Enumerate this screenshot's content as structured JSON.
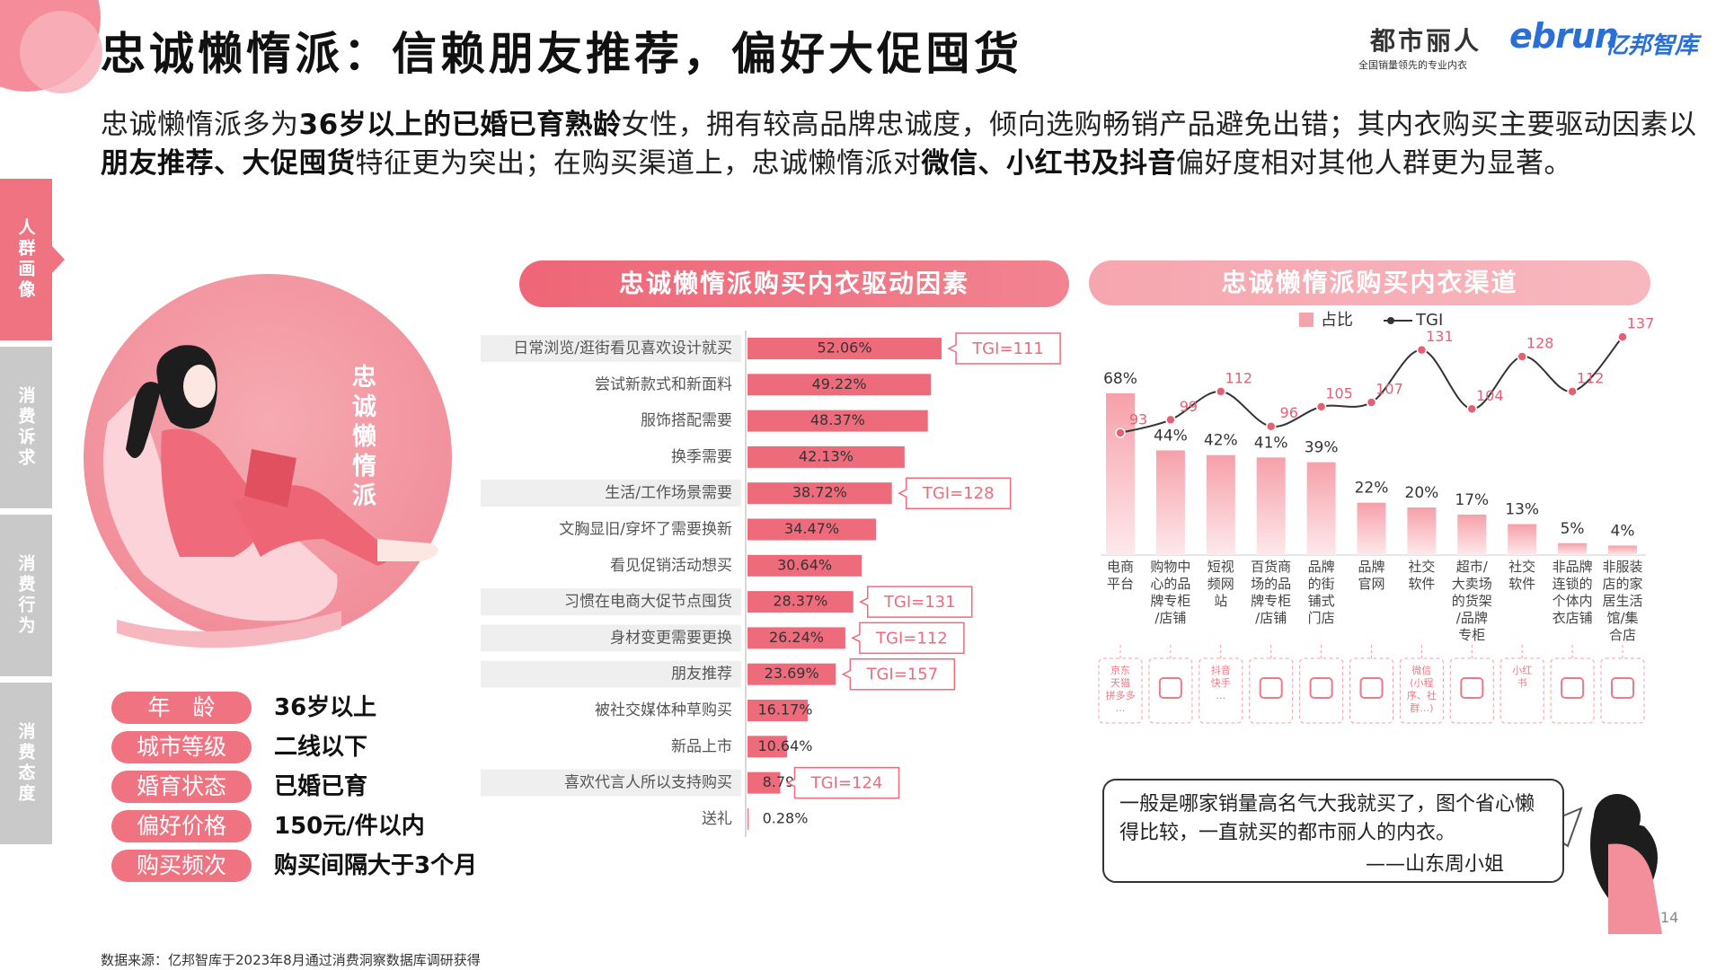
{
  "header": {
    "title": "忠诚懒惰派：信赖朋友推荐，偏好大促囤货",
    "logo_brand": "都市丽人",
    "logo_slogan": "全国销量领先的专业内衣",
    "logo_ebrun": "ebrun",
    "logo_ebrun_cn": "亿邦智库"
  },
  "intro": {
    "segments": [
      {
        "text": "忠诚懒惰派多为",
        "bold": false
      },
      {
        "text": "36岁以上的已婚已育熟龄",
        "bold": true
      },
      {
        "text": "女性，拥有较高品牌忠诚度，倾向选购畅销产品避免出错；其内衣购买主要驱动因素以",
        "bold": false
      },
      {
        "text": "朋友推荐、大促囤货",
        "bold": true
      },
      {
        "text": "特征更为突出；在购买渠道上，忠诚懒惰派对",
        "bold": false
      },
      {
        "text": "微信、小红书及抖音",
        "bold": true
      },
      {
        "text": "偏好度相对其他人群更为显著。",
        "bold": false
      }
    ]
  },
  "sidebar": {
    "tabs": [
      "人群画像",
      "消费诉求",
      "消费行为",
      "消费态度"
    ],
    "active": 0
  },
  "persona": {
    "name": "忠诚懒惰派",
    "attributes": [
      {
        "label": "年　龄",
        "value": "36岁以上"
      },
      {
        "label": "城市等级",
        "value": "二线以下"
      },
      {
        "label": "婚育状态",
        "value": "已婚已育"
      },
      {
        "label": "偏好价格",
        "value": "150元/件以内"
      },
      {
        "label": "购买频次",
        "value": "购买间隔大于3个月"
      }
    ]
  },
  "chart_data": [
    {
      "type": "bar",
      "title": "忠诚懒惰派购买内衣驱动因素",
      "color": "#ee6b7b",
      "categories": [
        "日常浏览/逛街看见喜欢设计就买",
        "尝试新款式和新面料",
        "服饰搭配需要",
        "换季需要",
        "生活/工作场景需要",
        "文胸显旧/穿坏了需要换新",
        "看见促销活动想买",
        "习惯在电商大促节点囤货",
        "身材变更需要更换",
        "朋友推荐",
        "被社交媒体种草购买",
        "新品上市",
        "喜欢代言人所以支持购买",
        "送礼"
      ],
      "values": [
        52.06,
        49.22,
        48.37,
        42.13,
        38.72,
        34.47,
        30.64,
        28.37,
        26.24,
        23.69,
        16.17,
        10.64,
        8.79,
        0.28
      ],
      "value_labels": [
        "52.06%",
        "49.22%",
        "48.37%",
        "42.13%",
        "38.72%",
        "34.47%",
        "30.64%",
        "28.37%",
        "26.24%",
        "23.69%",
        "16.17%",
        "10.64%",
        "8.79%",
        "0.28%"
      ],
      "tgi_labels": [
        "TGI=111",
        null,
        null,
        null,
        "TGI=128",
        null,
        null,
        "TGI=131",
        "TGI=112",
        "TGI=157",
        null,
        null,
        "TGI=124",
        null
      ]
    },
    {
      "type": "bar-line",
      "title": "忠诚懒惰派购买内衣渠道",
      "categories": [
        "电商\n平台",
        "购物中\n心的品\n牌专柜\n/店铺",
        "短视\n频网\n站",
        "百货商\n场的品\n牌专柜\n/店铺",
        "品牌\n的街\n铺式\n门店",
        "品牌\n官网",
        "社交\n软件",
        "超市/\n大卖场\n的货架\n/品牌\n专柜",
        "社交\n软件",
        "非品牌\n连锁的\n个体内\n衣店铺",
        "非服装\n店的家\n居生活\n馆/集\n合店"
      ],
      "icon_texts": [
        "京东\n天猫\n拼多多\n…",
        null,
        "抖音\n快手\n…",
        null,
        null,
        null,
        "微信\n(小程\n序、社\n群…)",
        null,
        "小红\n书",
        null,
        null
      ],
      "series": [
        {
          "name": "占比",
          "color": "#f5a3ab",
          "values": [
            68,
            44,
            42,
            41,
            39,
            22,
            20,
            17,
            13,
            5,
            4
          ],
          "value_labels": [
            "68%",
            "44%",
            "42%",
            "41%",
            "39%",
            "22%",
            "20%",
            "17%",
            "13%",
            "5%",
            "4%"
          ]
        },
        {
          "name": "TGI",
          "color": "#e75f72",
          "values": [
            93,
            99,
            112,
            96,
            105,
            107,
            131,
            104,
            128,
            112,
            137
          ]
        }
      ]
    }
  ],
  "quote": {
    "text": "一般是哪家销量高名气大我就买了，图个省心懒得比较，一直就买的都市丽人的内衣。",
    "author": "——山东周小姐"
  },
  "page_number": "14",
  "footer": {
    "source": "数据来源：亿邦智库于2023年8月通过消费洞察数据库调研获得"
  }
}
